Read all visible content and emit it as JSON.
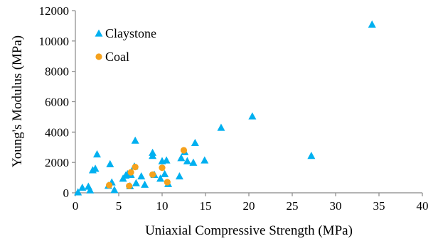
{
  "chart_data": {
    "type": "scatter",
    "xlabel": "Uniaxial Compressive Strength (MPa)",
    "ylabel": "Young's Modulus (MPa)",
    "xlim": [
      0,
      40
    ],
    "ylim": [
      0,
      12000
    ],
    "xticks": [
      0,
      5,
      10,
      15,
      20,
      25,
      30,
      35,
      40
    ],
    "yticks": [
      0,
      2000,
      4000,
      6000,
      8000,
      10000,
      12000
    ],
    "x_tick_labels": [
      "0",
      "5",
      "10",
      "15",
      "20",
      "25",
      "30",
      "35",
      "40"
    ],
    "y_tick_labels": [
      "0",
      "2000",
      "4000",
      "6000",
      "8000",
      "10000",
      "12000"
    ],
    "grid": false,
    "legend_position": "top-left",
    "series": [
      {
        "name": "Claystone",
        "marker": "triangle",
        "color": "#00b0f0",
        "points": [
          [
            0.3,
            50
          ],
          [
            0.8,
            350
          ],
          [
            1.5,
            420
          ],
          [
            1.7,
            180
          ],
          [
            2.0,
            1500
          ],
          [
            2.3,
            1600
          ],
          [
            2.5,
            2550
          ],
          [
            3.8,
            480
          ],
          [
            4.0,
            1900
          ],
          [
            4.2,
            700
          ],
          [
            4.5,
            200
          ],
          [
            5.5,
            950
          ],
          [
            5.8,
            1150
          ],
          [
            6.0,
            1250
          ],
          [
            6.3,
            450
          ],
          [
            6.4,
            1200
          ],
          [
            6.8,
            1750
          ],
          [
            6.9,
            3450
          ],
          [
            7.0,
            650
          ],
          [
            7.6,
            1100
          ],
          [
            8.0,
            550
          ],
          [
            8.9,
            2650
          ],
          [
            8.9,
            2450
          ],
          [
            9.1,
            1200
          ],
          [
            9.8,
            950
          ],
          [
            10.0,
            2100
          ],
          [
            10.3,
            1250
          ],
          [
            10.5,
            2150
          ],
          [
            10.7,
            600
          ],
          [
            12.0,
            1100
          ],
          [
            12.2,
            2300
          ],
          [
            12.6,
            2700
          ],
          [
            12.9,
            2100
          ],
          [
            13.6,
            2000
          ],
          [
            13.8,
            3300
          ],
          [
            14.9,
            2150
          ],
          [
            16.8,
            4300
          ],
          [
            20.4,
            5050
          ],
          [
            27.2,
            2450
          ],
          [
            34.2,
            11100
          ]
        ]
      },
      {
        "name": "Coal",
        "marker": "circle",
        "color": "#f5a11c",
        "points": [
          [
            3.9,
            500
          ],
          [
            6.2,
            450
          ],
          [
            6.4,
            1350
          ],
          [
            6.9,
            1700
          ],
          [
            8.9,
            1200
          ],
          [
            10.0,
            1650
          ],
          [
            10.6,
            700
          ],
          [
            12.5,
            2800
          ]
        ]
      }
    ]
  }
}
